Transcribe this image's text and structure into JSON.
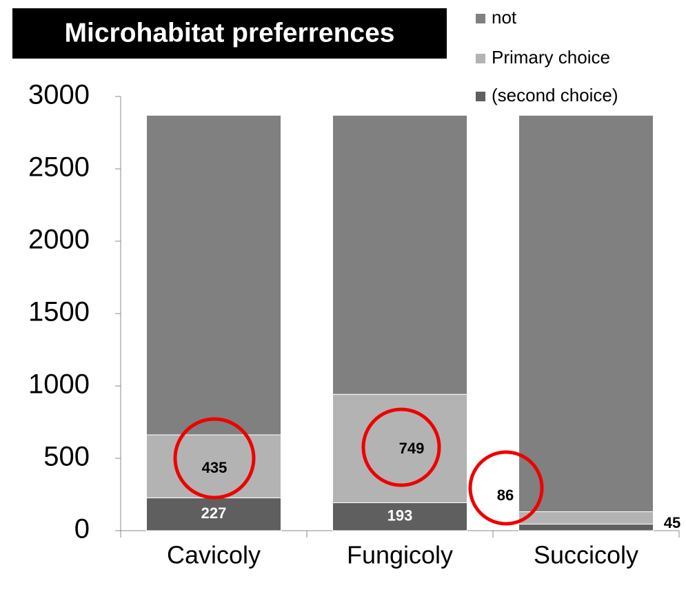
{
  "chart_data": {
    "type": "stacked-bar",
    "title": "Microhabitat preferrences",
    "categories": [
      "Cavicoly",
      "Fungicoly",
      "Succicoly"
    ],
    "series": [
      {
        "name": "(second choice)",
        "color": "#5f5f5f",
        "values": [
          227,
          193,
          45
        ]
      },
      {
        "name": "Primary choice",
        "color": "#b3b3b3",
        "values": [
          435,
          749,
          86
        ]
      },
      {
        "name": "not",
        "color": "#808080",
        "values": [
          2208,
          1928,
          2739
        ]
      }
    ],
    "ylim": [
      0,
      3000
    ],
    "yticks": [
      0,
      500,
      1000,
      1500,
      2000,
      2500,
      3000
    ],
    "grid": false
  }
}
